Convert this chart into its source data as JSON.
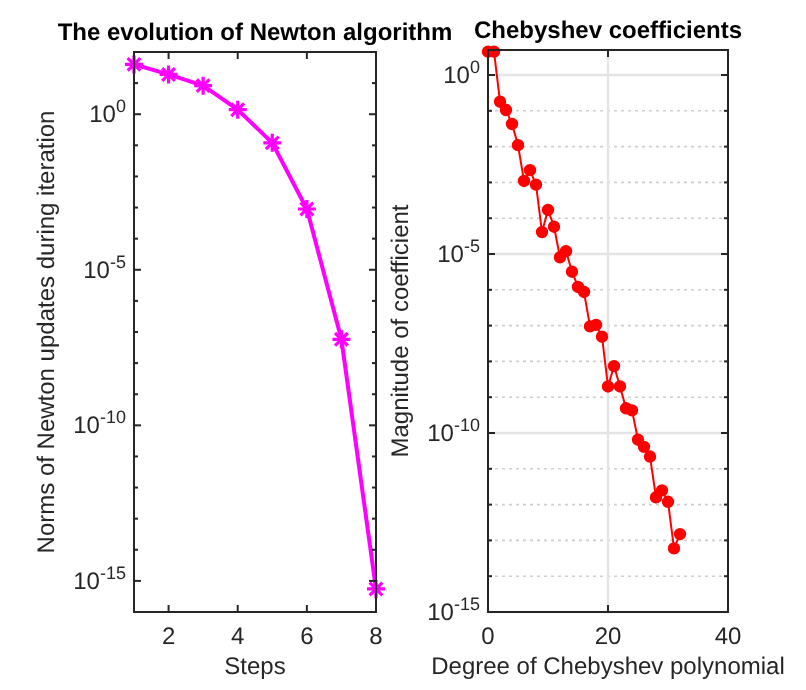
{
  "chart_data": [
    {
      "type": "line",
      "title": "The evolution of Newton algorithm",
      "xlabel": "Steps",
      "ylabel": "Norms of Newton updates during iteration",
      "log": "y",
      "grid": false,
      "marker": "cross",
      "line_style": "solid",
      "x": [
        1,
        2,
        3,
        4,
        5,
        6,
        7,
        8
      ],
      "series": [
        {
          "color": "#ff00ff",
          "values": [
            40,
            19,
            8.3,
            1.4,
            0.12,
            0.0009,
            5.8e-08,
            5.5e-16
          ]
        }
      ],
      "xlim": [
        1,
        8
      ],
      "xticks": [
        2,
        4,
        6,
        8
      ],
      "ylim": [
        1e-16,
        100
      ],
      "yticks": [
        {
          "value": 1e-16,
          "label": null
        },
        {
          "value": 1e-15,
          "label": "10$^{-15}$"
        },
        {
          "value": 1e-14,
          "label": null
        },
        {
          "value": 1e-13,
          "label": null
        },
        {
          "value": 1e-12,
          "label": null
        },
        {
          "value": 1e-11,
          "label": null
        },
        {
          "value": 1e-10,
          "label": "10$^{-10}$"
        },
        {
          "value": 1e-09,
          "label": null
        },
        {
          "value": 1e-08,
          "label": null
        },
        {
          "value": 1e-07,
          "label": null
        },
        {
          "value": 1e-06,
          "label": null
        },
        {
          "value": 1e-05,
          "label": "10$^{-5}$"
        },
        {
          "value": 0.0001,
          "label": null
        },
        {
          "value": 0.001,
          "label": null
        },
        {
          "value": 0.01,
          "label": null
        },
        {
          "value": 0.1,
          "label": null
        },
        {
          "value": 1,
          "label": "10$^{0}$"
        },
        {
          "value": 10,
          "label": null
        },
        {
          "value": 100,
          "label": null
        }
      ]
    },
    {
      "type": "line",
      "title": "Chebyshev coefficients",
      "xlabel": "Degree of Chebyshev polynomial",
      "ylabel": "Magnitude of coefficient",
      "log": "y",
      "grid": true,
      "marker": "circle",
      "line_style": "solid",
      "x": [
        0,
        1,
        2,
        3,
        4,
        5,
        6,
        7,
        8,
        9,
        10,
        11,
        12,
        13,
        14,
        15,
        16,
        17,
        18,
        19,
        20,
        21,
        22,
        23,
        24,
        25,
        26,
        27,
        28,
        29,
        30,
        31,
        32
      ],
      "series": [
        {
          "color": "#ff0000",
          "values": [
            4.5,
            4.5,
            0.18,
            0.105,
            0.043,
            0.011,
            0.0011,
            0.0022,
            0.00087,
            4.1e-05,
            0.00017,
            5.8e-05,
            8.1e-06,
            1.2e-05,
            3.2e-06,
            1.2e-06,
            8.7e-07,
            9.5e-08,
            1.05e-07,
            4.9e-08,
            2e-09,
            7.4e-09,
            2e-09,
            4.9e-10,
            4.3e-10,
            6.5e-11,
            4.1e-11,
            2.2e-11,
            1.6e-12,
            2.5e-12,
            1.2e-12,
            6e-14,
            1.5e-13
          ]
        }
      ],
      "xlim": [
        0,
        40
      ],
      "xticks": [
        0,
        20,
        40
      ],
      "ylim": [
        1e-15,
        5
      ],
      "yticks": [
        {
          "value": 1e-15,
          "label": "10$^{-15}$"
        },
        {
          "value": 1e-14,
          "label": null
        },
        {
          "value": 1e-13,
          "label": null
        },
        {
          "value": 1e-12,
          "label": null
        },
        {
          "value": 1e-11,
          "label": null
        },
        {
          "value": 1e-10,
          "label": "10$^{-10}$"
        },
        {
          "value": 1e-09,
          "label": null
        },
        {
          "value": 1e-08,
          "label": null
        },
        {
          "value": 1e-07,
          "label": null
        },
        {
          "value": 1e-06,
          "label": null
        },
        {
          "value": 1e-05,
          "label": "10$^{-5}$"
        },
        {
          "value": 0.0001,
          "label": null
        },
        {
          "value": 0.001,
          "label": null
        },
        {
          "value": 0.01,
          "label": null
        },
        {
          "value": 0.1,
          "label": null
        },
        {
          "value": 1,
          "label": "10$^{0}$"
        }
      ]
    }
  ]
}
